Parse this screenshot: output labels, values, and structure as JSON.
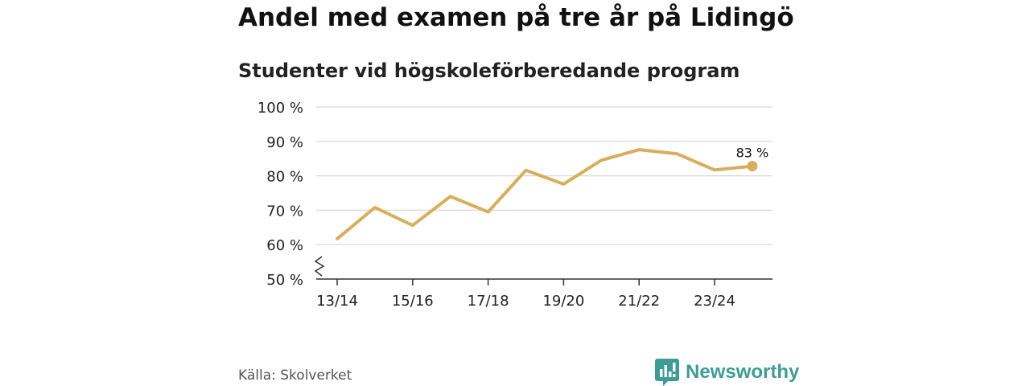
{
  "title": "Andel med examen på tre år på Lidingö",
  "subtitle": "Studenter vid högskoleförberedande program",
  "source": "Källa: Skolverket",
  "brand": {
    "name": "Newsworthy",
    "color": "#3e9c94",
    "icon": "newsworthy-bar-chart-icon"
  },
  "colors": {
    "line": "#d8ad5c",
    "grid": "#d9d9d9",
    "axis": "#333333",
    "text": "#222222"
  },
  "chart_data": {
    "type": "line",
    "title": "Andel med examen på tre år på Lidingö",
    "subtitle": "Studenter vid högskoleförberedande program",
    "x": [
      "13/14",
      "14/15",
      "15/16",
      "16/17",
      "17/18",
      "18/19",
      "19/20",
      "20/21",
      "21/22",
      "22/23",
      "23/24",
      "24/25"
    ],
    "x_tick_labels": [
      "13/14",
      "15/16",
      "17/18",
      "19/20",
      "21/22",
      "23/24"
    ],
    "series": [
      {
        "values": [
          61.7,
          70.8,
          65.6,
          74.0,
          69.5,
          81.6,
          77.6,
          84.5,
          87.6,
          86.4,
          81.7,
          82.8
        ]
      }
    ],
    "y_ticks": [
      50,
      60,
      70,
      80,
      90,
      100
    ],
    "y_tick_labels": [
      "50 %",
      "60 %",
      "70 %",
      "80 %",
      "90 %",
      "100 %"
    ],
    "ylim": [
      50,
      100
    ],
    "y_axis_break": true,
    "grid": true,
    "end_label": "83 %",
    "xlabel": "",
    "ylabel": ""
  }
}
